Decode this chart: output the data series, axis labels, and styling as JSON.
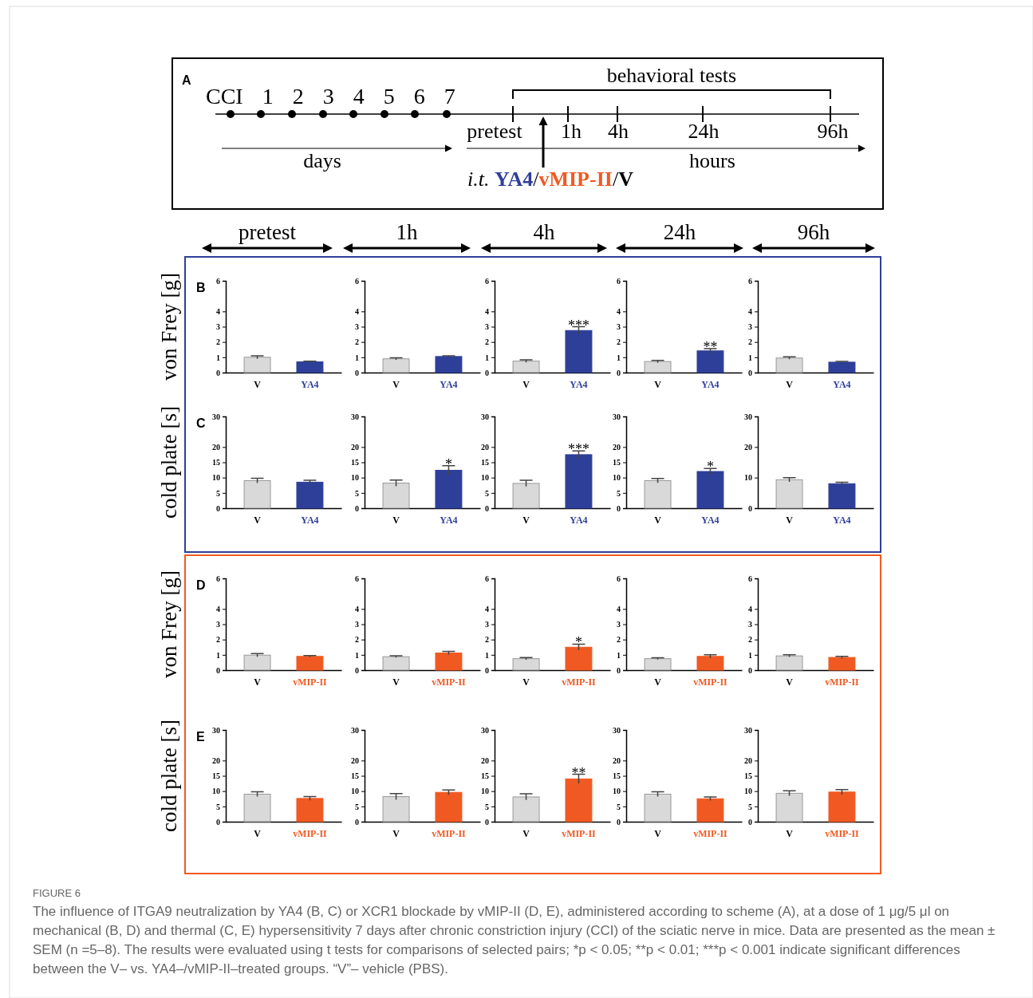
{
  "chart_data": [
    {
      "type": "other",
      "annotations": [
        "A",
        "CCI 1 2 3 4 5 6 7",
        "behavioral tests",
        "pretest",
        "1h",
        "4h",
        "24h",
        "96h",
        "days",
        "hours",
        "i.t. YA4/vMIP-II/V",
        "FIGURE 6",
        "The influence of ITGA9 neutralization by YA4 (B, C) or XCR1 blockade by vMIP-II (D, E), administered according to scheme (A), at a dose of 1 μg/5 μl on mechanical (B, D) and thermal (C, E) hypersensitivity 7 days after chronic constriction injury (CCI) of the sciatic nerve in mice. Data are presented as the mean ± SEM (n =5–8). The results were evaluated using t tests for comparisons of selected pairs; *p < 0.05; **p < 0.01; ***p < 0.001 indicate significant differences between the V– vs. YA4–/vMIP-II–treated groups. “V”– vehicle (PBS)."
      ]
    },
    {
      "type": "bar",
      "title": "pretest",
      "ylabel": "von Frey [g]",
      "categories": [
        "V",
        "YA4"
      ],
      "values": [
        1.0,
        0.7
      ],
      "errors": [
        0.1,
        0.05
      ],
      "colors": [
        "#d9d9d9",
        "#2e3f99"
      ],
      "ylim": [
        0,
        6
      ],
      "yticks": [
        0,
        1,
        2,
        3,
        4,
        6
      ],
      "annotations": [
        "B"
      ]
    },
    {
      "type": "bar",
      "title": "1h",
      "categories": [
        "V",
        "YA4"
      ],
      "values": [
        0.9,
        1.05
      ],
      "errors": [
        0.07,
        0.05
      ],
      "colors": [
        "#d9d9d9",
        "#2e3f99"
      ],
      "ylim": [
        0,
        6
      ],
      "yticks": [
        0,
        1,
        2,
        3,
        4,
        6
      ]
    },
    {
      "type": "bar",
      "title": "4h",
      "categories": [
        "V",
        "YA4"
      ],
      "values": [
        0.75,
        2.75
      ],
      "errors": [
        0.08,
        0.25
      ],
      "colors": [
        "#d9d9d9",
        "#2e3f99"
      ],
      "ylim": [
        0,
        6
      ],
      "yticks": [
        0,
        1,
        2,
        3,
        4,
        6
      ],
      "annotations": [
        {
          "text": "***",
          "x": "YA4",
          "y": 3.0
        }
      ]
    },
    {
      "type": "bar",
      "title": "24h",
      "categories": [
        "V",
        "YA4"
      ],
      "values": [
        0.72,
        1.42
      ],
      "errors": [
        0.08,
        0.15
      ],
      "colors": [
        "#d9d9d9",
        "#2e3f99"
      ],
      "ylim": [
        0,
        6
      ],
      "yticks": [
        0,
        1,
        2,
        3,
        4,
        6
      ],
      "annotations": [
        {
          "text": "**",
          "x": "YA4",
          "y": 1.57
        }
      ]
    },
    {
      "type": "bar",
      "title": "96h",
      "categories": [
        "V",
        "YA4"
      ],
      "values": [
        0.95,
        0.68
      ],
      "errors": [
        0.08,
        0.05
      ],
      "colors": [
        "#d9d9d9",
        "#2e3f99"
      ],
      "ylim": [
        0,
        6
      ],
      "yticks": [
        0,
        1,
        2,
        3,
        4,
        6
      ]
    },
    {
      "type": "bar",
      "ylabel": "cold plate [s]",
      "categories": [
        "V",
        "YA4"
      ],
      "values": [
        9,
        8.5
      ],
      "errors": [
        0.8,
        0.6
      ],
      "colors": [
        "#d9d9d9",
        "#2e3f99"
      ],
      "ylim": [
        0,
        30
      ],
      "yticks": [
        0,
        5,
        10,
        15,
        20,
        30
      ],
      "annotations": [
        "C"
      ]
    },
    {
      "type": "bar",
      "categories": [
        "V",
        "YA4"
      ],
      "values": [
        8.2,
        12.4
      ],
      "errors": [
        1,
        1.5
      ],
      "colors": [
        "#d9d9d9",
        "#2e3f99"
      ],
      "ylim": [
        0,
        30
      ],
      "yticks": [
        0,
        5,
        10,
        15,
        20,
        30
      ],
      "annotations": [
        {
          "text": "*",
          "x": "YA4",
          "y": 13.9
        }
      ]
    },
    {
      "type": "bar",
      "categories": [
        "V",
        "YA4"
      ],
      "values": [
        8.1,
        17.5
      ],
      "errors": [
        1,
        1.2
      ],
      "colors": [
        "#d9d9d9",
        "#2e3f99"
      ],
      "ylim": [
        0,
        30
      ],
      "yticks": [
        0,
        5,
        10,
        15,
        20,
        30
      ],
      "annotations": [
        {
          "text": "***",
          "x": "YA4",
          "y": 18.7
        }
      ]
    },
    {
      "type": "bar",
      "categories": [
        "V",
        "YA4"
      ],
      "values": [
        9,
        12
      ],
      "errors": [
        0.7,
        1
      ],
      "colors": [
        "#d9d9d9",
        "#2e3f99"
      ],
      "ylim": [
        0,
        30
      ],
      "yticks": [
        0,
        5,
        10,
        15,
        20,
        30
      ],
      "annotations": [
        {
          "text": "*",
          "x": "YA4",
          "y": 13
        }
      ]
    },
    {
      "type": "bar",
      "categories": [
        "V",
        "YA4"
      ],
      "values": [
        9.3,
        8
      ],
      "errors": [
        0.7,
        0.5
      ],
      "colors": [
        "#d9d9d9",
        "#2e3f99"
      ],
      "ylim": [
        0,
        30
      ],
      "yticks": [
        0,
        10,
        20,
        30
      ]
    },
    {
      "type": "bar",
      "ylabel": "von Frey [g]",
      "categories": [
        "V",
        "vMIP-II"
      ],
      "values": [
        0.98,
        0.9
      ],
      "errors": [
        0.1,
        0.05
      ],
      "colors": [
        "#d9d9d9",
        "#f05a22"
      ],
      "ylim": [
        0,
        6
      ],
      "yticks": [
        0,
        1,
        2,
        3,
        4,
        6
      ],
      "annotations": [
        "D"
      ]
    },
    {
      "type": "bar",
      "categories": [
        "V",
        "vMIP-II"
      ],
      "values": [
        0.88,
        1.12
      ],
      "errors": [
        0.06,
        0.1
      ],
      "colors": [
        "#d9d9d9",
        "#f05a22"
      ],
      "ylim": [
        0,
        6
      ],
      "yticks": [
        0,
        1,
        2,
        3,
        4,
        6
      ]
    },
    {
      "type": "bar",
      "categories": [
        "V",
        "vMIP-II"
      ],
      "values": [
        0.75,
        1.5
      ],
      "errors": [
        0.07,
        0.2
      ],
      "colors": [
        "#d9d9d9",
        "#f05a22"
      ],
      "ylim": [
        0,
        6
      ],
      "yticks": [
        0,
        1,
        2,
        3,
        4,
        6
      ],
      "annotations": [
        {
          "text": "*",
          "x": "vMIP-II",
          "y": 1.7
        }
      ]
    },
    {
      "type": "bar",
      "categories": [
        "V",
        "vMIP-II"
      ],
      "values": [
        0.75,
        0.9
      ],
      "errors": [
        0.06,
        0.1
      ],
      "colors": [
        "#d9d9d9",
        "#f05a22"
      ],
      "ylim": [
        0,
        6
      ],
      "yticks": [
        0,
        1,
        2,
        3,
        4,
        6
      ]
    },
    {
      "type": "bar",
      "categories": [
        "V",
        "vMIP-II"
      ],
      "values": [
        0.93,
        0.83
      ],
      "errors": [
        0.07,
        0.07
      ],
      "colors": [
        "#d9d9d9",
        "#f05a22"
      ],
      "ylim": [
        0,
        6
      ],
      "yticks": [
        0,
        1,
        2,
        3,
        4,
        6
      ]
    },
    {
      "type": "bar",
      "ylabel": "cold plate [s]",
      "categories": [
        "V",
        "vMIP-II"
      ],
      "values": [
        9,
        7.6
      ],
      "errors": [
        0.8,
        0.6
      ],
      "colors": [
        "#d9d9d9",
        "#f05a22"
      ],
      "ylim": [
        0,
        30
      ],
      "yticks": [
        0,
        5,
        10,
        15,
        20,
        30
      ],
      "annotations": [
        "E"
      ]
    },
    {
      "type": "bar",
      "categories": [
        "V",
        "vMIP-II"
      ],
      "values": [
        8.2,
        9.6
      ],
      "errors": [
        1,
        0.8
      ],
      "colors": [
        "#d9d9d9",
        "#f05a22"
      ],
      "ylim": [
        0,
        30
      ],
      "yticks": [
        0,
        5,
        10,
        15,
        20,
        30
      ]
    },
    {
      "type": "bar",
      "categories": [
        "V",
        "vMIP-II"
      ],
      "values": [
        8.1,
        14
      ],
      "errors": [
        1,
        1.5
      ],
      "colors": [
        "#d9d9d9",
        "#f05a22"
      ],
      "ylim": [
        0,
        30
      ],
      "yticks": [
        0,
        5,
        10,
        15,
        20,
        30
      ],
      "annotations": [
        {
          "text": "**",
          "x": "vMIP-II",
          "y": 15.5
        }
      ]
    },
    {
      "type": "bar",
      "categories": [
        "V",
        "vMIP-II"
      ],
      "values": [
        9,
        7.5
      ],
      "errors": [
        0.8,
        0.6
      ],
      "colors": [
        "#d9d9d9",
        "#f05a22"
      ],
      "ylim": [
        0,
        30
      ],
      "yticks": [
        0,
        5,
        10,
        15,
        20,
        30
      ]
    },
    {
      "type": "bar",
      "categories": [
        "V",
        "vMIP-II"
      ],
      "values": [
        9.3,
        9.7
      ],
      "errors": [
        0.8,
        0.8
      ],
      "colors": [
        "#d9d9d9",
        "#f05a22"
      ],
      "ylim": [
        0,
        30
      ],
      "yticks": [
        0,
        5,
        10,
        15,
        20,
        30
      ]
    }
  ]
}
